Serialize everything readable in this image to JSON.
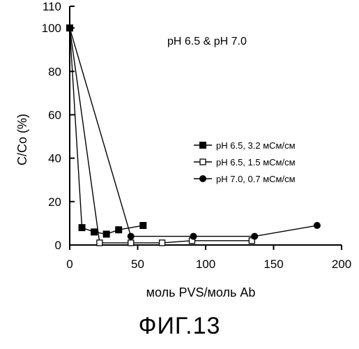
{
  "chart_data": {
    "type": "line",
    "title": "",
    "annotation": "pH 6.5 & pH 7.0",
    "xlabel": "моль PVS/моль Ab",
    "ylabel": "C/Co (%)",
    "xlim": [
      0,
      200
    ],
    "ylim": [
      0,
      110
    ],
    "x_ticks": [
      0,
      50,
      100,
      150,
      200
    ],
    "y_ticks": [
      0,
      20,
      40,
      60,
      80,
      100,
      110
    ],
    "grid": false,
    "legend_position": "right",
    "series": [
      {
        "name": "pH 6.5, 3.2 мСм/см",
        "marker": "filled-square",
        "x": [
          0,
          9,
          18,
          27,
          36,
          54
        ],
        "y": [
          100,
          8,
          6,
          5,
          7,
          9
        ]
      },
      {
        "name": "pH 6.5, 1.5 мСм/см",
        "marker": "open-square",
        "x": [
          0,
          22,
          45,
          68,
          90,
          134
        ],
        "y": [
          100,
          1,
          1,
          1,
          2,
          2
        ]
      },
      {
        "name": "pH 7.0, 0.7 мСм/см",
        "marker": "filled-circle",
        "x": [
          0,
          45,
          91,
          136,
          182
        ],
        "y": [
          100,
          4,
          4,
          4,
          9
        ]
      }
    ]
  },
  "caption": "ФИГ.13"
}
